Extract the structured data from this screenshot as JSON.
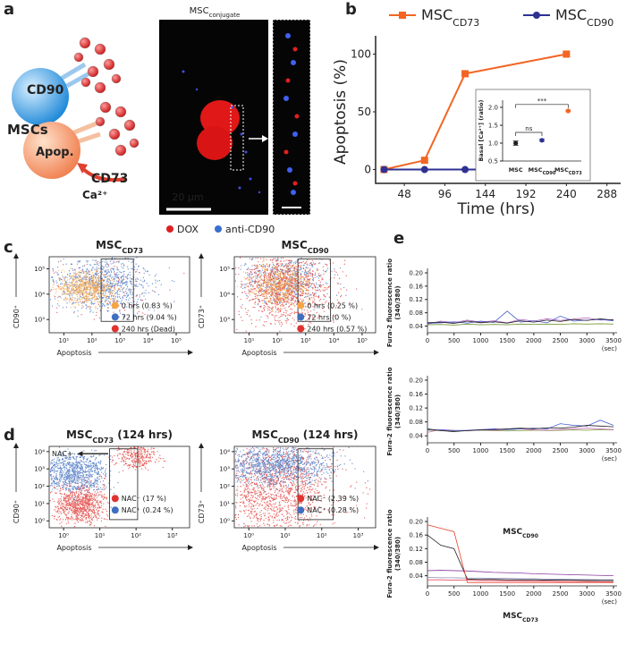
{
  "panel_labels": [
    "a",
    "b",
    "c",
    "d",
    "e"
  ],
  "figure_a": {
    "cell_labels": [
      "CD90",
      "MSCs",
      "Apop.",
      "CD73",
      "Ca²⁺"
    ],
    "image_title": "MSC",
    "image_title_sub": "conjugate",
    "scale_bar": "20 μm",
    "image_legend": [
      "DOX",
      "anti-CD90"
    ]
  },
  "chart_data": [
    {
      "type": "line",
      "x": [
        24,
        72,
        120,
        240
      ],
      "xlabel": "Time (hrs)",
      "ylabel": "Apoptosis (%)",
      "xlim": [
        14,
        300
      ],
      "xticks": [
        48,
        96,
        144,
        192,
        240,
        288
      ],
      "ylim": [
        -12,
        112
      ],
      "yticks": [
        0,
        50,
        100
      ],
      "series": [
        {
          "name": "MSC",
          "subscript": "CD73",
          "color": "#f26522",
          "marker": "square",
          "values": [
            0,
            8,
            83,
            100
          ]
        },
        {
          "name": "MSC",
          "subscript": "CD90",
          "color": "#2e3192",
          "marker": "circle",
          "values": [
            0,
            0,
            0,
            0
          ]
        }
      ]
    },
    {
      "type": "errorbar",
      "categories": [
        "MSC",
        "MSC",
        "MSC"
      ],
      "category_subscripts": [
        null,
        "CD90",
        "CD73"
      ],
      "colors": [
        "#231f20",
        "#2e3192",
        "#f26522"
      ],
      "values": [
        1.0,
        1.08,
        1.9
      ],
      "errors": [
        0.06,
        0.03,
        0.02
      ],
      "ylabel": "Basal [Ca²⁺] (ratio)",
      "ylim": [
        0.5,
        2.2
      ],
      "yticks": [
        {
          "value": 0.5,
          "label": "0.5"
        },
        {
          "value": 1.0,
          "label": "1.0"
        },
        1.5,
        {
          "value": 2.0,
          "label": "2.0"
        }
      ],
      "annotations": [
        "ns",
        "***"
      ]
    },
    {
      "type": "flow",
      "title": "MSC",
      "title_sub": "CD73",
      "xlabel": "Apoptosis",
      "ylabel": "CD90⁺",
      "log": true,
      "xlim": [
        3,
        300000
      ],
      "xticks": [
        {
          "value": 10,
          "label": "10¹"
        },
        {
          "value": 100,
          "label": "10²"
        },
        {
          "value": 1000,
          "label": "10³"
        },
        {
          "value": 10000,
          "label": "10⁴"
        },
        {
          "value": 100000,
          "label": "10⁵"
        }
      ],
      "ylim": [
        300,
        300000
      ],
      "yticks": [
        {
          "value": 1000,
          "label": "10³"
        },
        {
          "value": 10000,
          "label": "10⁴"
        },
        {
          "value": 100000,
          "label": "10⁵"
        }
      ],
      "series": [
        {
          "name": "0 hrs (0.83 %)",
          "color": "#f7a541"
        },
        {
          "name": "72 hrs (9.04 %)",
          "color": "#3f6fc0"
        },
        {
          "name": "240 hrs (Dead)",
          "color": "#e0332f"
        }
      ]
    },
    {
      "type": "flow",
      "title": "MSC",
      "title_sub": "CD90",
      "xlabel": "Apoptosis",
      "ylabel": "CD73⁺",
      "log": true,
      "xlim": [
        3,
        300000
      ],
      "xticks": [
        {
          "value": 10,
          "label": "10¹"
        },
        {
          "value": 100,
          "label": "10²"
        },
        {
          "value": 1000,
          "label": "10³"
        },
        {
          "value": 10000,
          "label": "10⁴"
        },
        {
          "value": 100000,
          "label": "10⁵"
        }
      ],
      "ylim": [
        300,
        300000
      ],
      "yticks": [
        {
          "value": 1000,
          "label": "10³"
        },
        {
          "value": 10000,
          "label": "10⁴"
        },
        {
          "value": 100000,
          "label": "10⁵"
        }
      ],
      "series": [
        {
          "name": "0 hrs (0.25 %)",
          "color": "#f7a541"
        },
        {
          "name": "72 hrs (0 %)",
          "color": "#3f6fc0"
        },
        {
          "name": "240 hrs (0.57 %)",
          "color": "#e0332f"
        }
      ]
    },
    {
      "type": "flow",
      "title": "MSC",
      "title_sub": "CD73",
      "title_suffix": " (124 hrs)",
      "xlabel": "Apoptosis",
      "ylabel": "CD90⁺",
      "log": true,
      "xlim": [
        0.4,
        3000
      ],
      "xticks": [
        {
          "value": 1,
          "label": "10⁰"
        },
        {
          "value": 10,
          "label": "10¹"
        },
        {
          "value": 100,
          "label": "10²"
        },
        {
          "value": 1000,
          "label": "10³"
        }
      ],
      "ylim": [
        0.4,
        20000
      ],
      "yticks": [
        {
          "value": 1,
          "label": "10⁰"
        },
        {
          "value": 10,
          "label": "10¹"
        },
        {
          "value": 100,
          "label": "10²"
        },
        {
          "value": 1000,
          "label": "10³"
        },
        {
          "value": 10000,
          "label": "10⁴"
        }
      ],
      "annotation": "NAC+",
      "series": [
        {
          "name": "NAC⁻ (17 %)",
          "color": "#e0332f"
        },
        {
          "name": "NAC⁺ (0.24 %)",
          "color": "#3f6fc0"
        }
      ]
    },
    {
      "type": "flow",
      "title": "MSC",
      "title_sub": "CD90",
      "title_suffix": " (124 hrs)",
      "xlabel": "Apoptosis",
      "ylabel": "CD73⁺",
      "log": true,
      "xlim": [
        0.4,
        3000
      ],
      "xticks": [
        {
          "value": 1,
          "label": "10⁰"
        },
        {
          "value": 10,
          "label": "10¹"
        },
        {
          "value": 100,
          "label": "10²"
        },
        {
          "value": 1000,
          "label": "10³"
        }
      ],
      "ylim": [
        0.4,
        20000
      ],
      "yticks": [
        {
          "value": 1,
          "label": "10⁰"
        },
        {
          "value": 10,
          "label": "10¹"
        },
        {
          "value": 100,
          "label": "10²"
        },
        {
          "value": 1000,
          "label": "10³"
        },
        {
          "value": 10000,
          "label": "10⁴"
        }
      ],
      "series": [
        {
          "name": "NAC⁻ (2.39 %)",
          "color": "#e0332f"
        },
        {
          "name": "NAC⁺ (0.28 %)",
          "color": "#3f6fc0"
        }
      ]
    },
    {
      "type": "line",
      "x": [
        0,
        250,
        500,
        750,
        1000,
        1250,
        1500,
        1750,
        2000,
        2250,
        2500,
        2750,
        3000,
        3250,
        3500
      ],
      "xlabel": "(sec)",
      "ylabel": [
        "Fura-2 fluorescence ratio",
        "(340/380)"
      ],
      "xlim": [
        0,
        3500
      ],
      "xticks": [
        0,
        500,
        1000,
        1500,
        2000,
        2500,
        3000,
        3500
      ],
      "ylim": [
        0.02,
        0.2
      ],
      "yticks": [
        {
          "value": 0.04,
          "label": "0.04"
        },
        {
          "value": 0.08,
          "label": "0.08"
        },
        {
          "value": 0.12,
          "label": "0.12"
        },
        {
          "value": 0.16,
          "label": "0.16"
        },
        {
          "value": 0.2,
          "label": "0.20"
        }
      ],
      "series": [
        {
          "color": "#7a9a3a",
          "values": [
            0.044,
            0.045,
            0.043,
            0.046,
            0.044,
            0.045,
            0.044,
            0.046,
            0.045,
            0.046,
            0.045,
            0.047,
            0.046,
            0.047,
            0.046
          ]
        },
        {
          "color": "#b05cc0",
          "values": [
            0.046,
            0.055,
            0.05,
            0.058,
            0.052,
            0.056,
            0.05,
            0.06,
            0.055,
            0.062,
            0.057,
            0.061,
            0.065,
            0.058,
            0.06
          ]
        },
        {
          "color": "#4a5fd0",
          "values": [
            0.048,
            0.05,
            0.053,
            0.049,
            0.055,
            0.051,
            0.085,
            0.052,
            0.056,
            0.05,
            0.07,
            0.055,
            0.058,
            0.06,
            0.056
          ]
        },
        {
          "color": "#222222",
          "values": [
            0.05,
            0.052,
            0.048,
            0.055,
            0.05,
            0.053,
            0.049,
            0.056,
            0.052,
            0.058,
            0.054,
            0.06,
            0.057,
            0.062,
            0.058
          ]
        }
      ]
    },
    {
      "type": "line",
      "x": [
        0,
        250,
        500,
        750,
        1000,
        1250,
        1500,
        1750,
        2000,
        2250,
        2500,
        2750,
        3000,
        3250,
        3500
      ],
      "xlabel": "(sec)",
      "ylabel": [
        "Fura-2 fluorescence ratio",
        "(340/380)"
      ],
      "xlim": [
        0,
        3500
      ],
      "xticks": [
        0,
        500,
        1000,
        1500,
        2000,
        2500,
        3000,
        3500
      ],
      "ylim": [
        0.02,
        0.2
      ],
      "yticks": [
        {
          "value": 0.04,
          "label": "0.04"
        },
        {
          "value": 0.08,
          "label": "0.08"
        },
        {
          "value": 0.12,
          "label": "0.12"
        },
        {
          "value": 0.16,
          "label": "0.16"
        },
        {
          "value": 0.2,
          "label": "0.20"
        }
      ],
      "series": [
        {
          "color": "#7a9a3a",
          "values": [
            0.056,
            0.055,
            0.054,
            0.055,
            0.056,
            0.055,
            0.054,
            0.055,
            0.056,
            0.055,
            0.056,
            0.057,
            0.056,
            0.058,
            0.057
          ]
        },
        {
          "color": "#d070c0",
          "values": [
            0.05,
            0.058,
            0.056,
            0.054,
            0.057,
            0.056,
            0.058,
            0.06,
            0.057,
            0.056,
            0.058,
            0.06,
            0.062,
            0.06,
            0.058
          ]
        },
        {
          "color": "#4a5fd0",
          "values": [
            0.058,
            0.057,
            0.055,
            0.056,
            0.058,
            0.06,
            0.058,
            0.06,
            0.062,
            0.06,
            0.075,
            0.07,
            0.068,
            0.085,
            0.07
          ]
        },
        {
          "color": "#222222",
          "values": [
            0.06,
            0.055,
            0.052,
            0.055,
            0.057,
            0.058,
            0.06,
            0.062,
            0.06,
            0.063,
            0.062,
            0.065,
            0.07,
            0.068,
            0.066
          ]
        }
      ]
    },
    {
      "type": "line",
      "title": "MSC",
      "title_sub": "CD90",
      "caption": "MSC",
      "caption_sub": "CD73",
      "x": [
        0,
        250,
        500,
        750,
        1000,
        1250,
        1500,
        1750,
        2000,
        2250,
        2500,
        2750,
        3000,
        3250,
        3500
      ],
      "xlabel": "(sec)",
      "ylabel": [
        "Fura-2 fluorescence ratio",
        "(340/380)"
      ],
      "xlim": [
        0,
        3500
      ],
      "xticks": [
        0,
        500,
        1000,
        1500,
        2000,
        2500,
        3000,
        3500
      ],
      "ylim": [
        0.01,
        0.2
      ],
      "yticks": [
        {
          "value": 0.04,
          "label": "0.04"
        },
        {
          "value": 0.08,
          "label": "0.08"
        },
        {
          "value": 0.12,
          "label": "0.12"
        },
        {
          "value": 0.16,
          "label": "0.16"
        },
        {
          "value": 0.2,
          "label": "0.20"
        }
      ],
      "series": [
        {
          "color": "#e8506a",
          "values": [
            0.028,
            0.028,
            0.027,
            0.027,
            0.026,
            0.026,
            0.025,
            0.025,
            0.024,
            0.024,
            0.023,
            0.023,
            0.023,
            0.022,
            0.022
          ]
        },
        {
          "color": "#8a8ab0",
          "values": [
            0.035,
            0.034,
            0.034,
            0.033,
            0.033,
            0.032,
            0.032,
            0.031,
            0.031,
            0.03,
            0.03,
            0.029,
            0.029,
            0.028,
            0.028
          ]
        },
        {
          "color": "#8a3aa0",
          "values": [
            0.055,
            0.056,
            0.055,
            0.054,
            0.052,
            0.05,
            0.049,
            0.048,
            0.046,
            0.045,
            0.044,
            0.043,
            0.042,
            0.041,
            0.04
          ]
        },
        {
          "color": "#222222",
          "values": [
            0.16,
            0.13,
            0.12,
            0.03,
            0.029,
            0.029,
            0.028,
            0.028,
            0.028,
            0.027,
            0.027,
            0.027,
            0.026,
            0.026,
            0.026
          ]
        },
        {
          "color": "#e8402a",
          "values": [
            0.19,
            0.18,
            0.17,
            0.02,
            0.02,
            0.02,
            0.02,
            0.02,
            0.02,
            0.02,
            0.02,
            0.02,
            0.02,
            0.02,
            0.02
          ]
        }
      ]
    }
  ]
}
